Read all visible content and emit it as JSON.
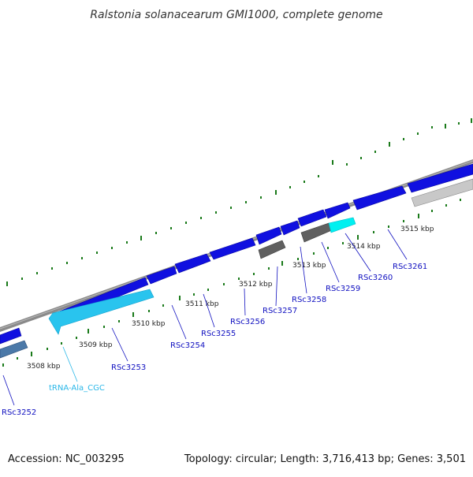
{
  "title": "Ralstonia solanacearum GMI1000, complete genome",
  "footer": {
    "accession": "Accession: NC_003295",
    "summary": "Topology: circular; Length: 3,716,413 bp; Genes: 3,501"
  },
  "colors": {
    "background": "#ffffff",
    "backbone": "#8a8a8a",
    "gene_forward": "#1010e0",
    "gene_reverse_gray": "#606060",
    "gene_reverse_light": "#c8c8c8",
    "gene_reverse_steel": "#4b79a8",
    "trna": "#29c4ee",
    "highlight": "#00f0f0",
    "ticks": "#1a7a1a",
    "gene_label": "#1010c0",
    "trna_label": "#2ab7e8"
  },
  "scale_labels": [
    "3508 kbp",
    "3509 kbp",
    "3510 kbp",
    "3511 kbp",
    "3512 kbp",
    "3513 kbp",
    "3514 kbp",
    "3515 kbp"
  ],
  "gene_labels": [
    "RSc3252",
    "RSc3253",
    "RSc3254",
    "RSc3255",
    "RSc3256",
    "RSc3257",
    "RSc3258",
    "RSc3259",
    "RSc3260",
    "RSc3261"
  ],
  "trna_label": "tRNA-Ala_CGC"
}
